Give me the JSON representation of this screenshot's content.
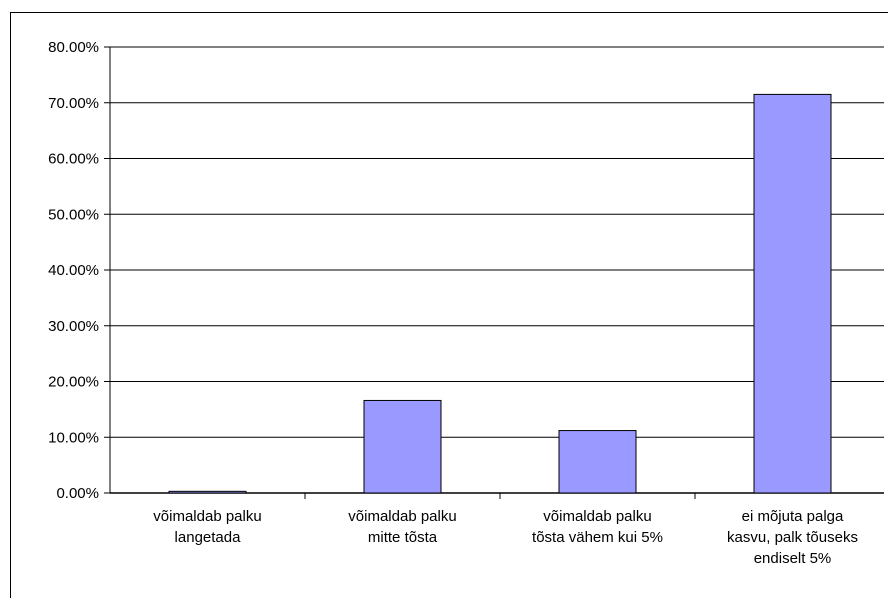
{
  "chart_data": {
    "type": "bar",
    "title": "",
    "xlabel": "",
    "ylabel": "",
    "categories": [
      [
        "võimaldab palku",
        "langetada"
      ],
      [
        "võimaldab palku",
        "mitte tõsta"
      ],
      [
        "võimaldab palku",
        "tõsta vähem kui 5%"
      ],
      [
        "ei mõjuta palga",
        "kasvu, palk tõuseks",
        "endiselt 5%"
      ]
    ],
    "values": [
      0.3,
      16.6,
      11.2,
      71.5
    ],
    "ylim": [
      0,
      80
    ],
    "yticks": [
      0,
      10,
      20,
      30,
      40,
      50,
      60,
      70,
      80
    ],
    "ytick_labels": [
      "0.00%",
      "10.00%",
      "20.00%",
      "30.00%",
      "40.00%",
      "50.00%",
      "60.00%",
      "70.00%",
      "80.00%"
    ],
    "grid": true,
    "legend": "none",
    "bar_color": "#9999ff"
  }
}
